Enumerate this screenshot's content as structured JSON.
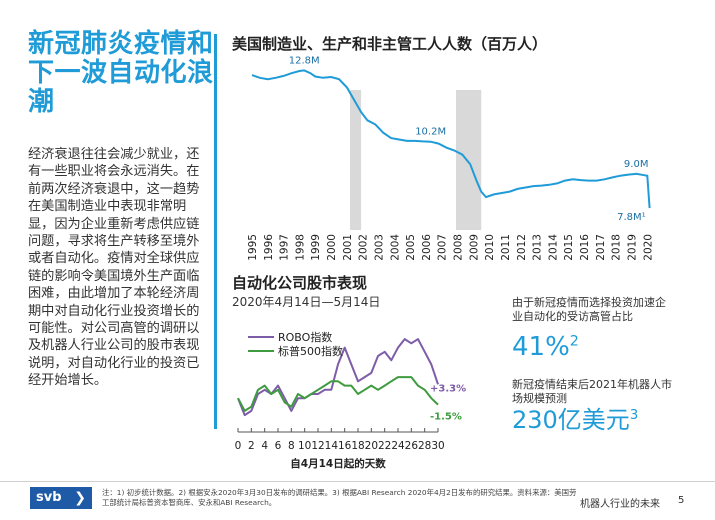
{
  "page": {
    "title": "新冠肺炎疫情和下一波自动化浪潮",
    "body": "经济衰退往往会减少就业，还有一些职业将会永远消失。在前两次经济衰退中，这一趋势在美国制造业中表现非常明显，因为企业重新考虑供应链问题，寻求将生产转移至境外或者自动化。疫情对全球供应链的影响令美国境外生产面临困难，由此增加了本轮经济周期中对自动化行业投资增长的可能性。对公司高管的调研以及机器人行业公司的股市表现说明，对自动化行业的投资已经开始增长。",
    "footnote": "注：1) 初步统计数据。2) 根据安永2020年3月30日发布的调研结果。3) 根据ABI Research 2020年4月2日发布的研究结果。资料来源：美国劳工部统计局标普资本智商库、安永和ABI Research。",
    "footer_right": "机器人行业的未来",
    "page_number": "5",
    "logo_text": "svb",
    "colors": {
      "accent": "#1f9bd7",
      "brand": "#1f5aa6",
      "robo": "#7d5ca8",
      "sp500": "#3f9b3f",
      "recession": "#d9d9d9"
    }
  },
  "stats": [
    {
      "label": "由于新冠疫情而选择投资加速企业自动化的受访高管占比",
      "value": "41%",
      "sup": "2"
    },
    {
      "label": "新冠疫情结束后2021年机器人市场规模预测",
      "value": "230亿美元",
      "sup": "3"
    }
  ],
  "chart_data": [
    {
      "type": "line",
      "title": "美国制造业、生产和非主管工人人数（百万人）",
      "x_ticks": [
        "1995",
        "1996",
        "1997",
        "1998",
        "1999",
        "2000",
        "2001",
        "2002",
        "2003",
        "2004",
        "2005",
        "2006",
        "2007",
        "2008",
        "2009",
        "2010",
        "2011",
        "2012",
        "2013",
        "2014",
        "2015",
        "2016",
        "2017",
        "2018",
        "2019",
        "2020"
      ],
      "recessions": [
        [
          2001.2,
          2001.9
        ],
        [
          2007.9,
          2009.5
        ]
      ],
      "ylim": [
        7.0,
        13.2
      ],
      "series": [
        {
          "values": [
            [
              1995.0,
              12.65
            ],
            [
              1995.5,
              12.55
            ],
            [
              1996.0,
              12.5
            ],
            [
              1996.5,
              12.55
            ],
            [
              1997.0,
              12.62
            ],
            [
              1997.5,
              12.72
            ],
            [
              1998.0,
              12.8
            ],
            [
              1998.3,
              12.82
            ],
            [
              1998.7,
              12.72
            ],
            [
              1999.0,
              12.6
            ],
            [
              1999.5,
              12.55
            ],
            [
              2000.0,
              12.58
            ],
            [
              2000.5,
              12.5
            ],
            [
              2001.0,
              12.2
            ],
            [
              2001.5,
              11.7
            ],
            [
              2001.9,
              11.3
            ],
            [
              2002.3,
              11.0
            ],
            [
              2002.8,
              10.85
            ],
            [
              2003.3,
              10.55
            ],
            [
              2003.8,
              10.35
            ],
            [
              2004.3,
              10.3
            ],
            [
              2004.8,
              10.25
            ],
            [
              2005.3,
              10.25
            ],
            [
              2005.8,
              10.23
            ],
            [
              2006.3,
              10.22
            ],
            [
              2006.8,
              10.15
            ],
            [
              2007.3,
              10.0
            ],
            [
              2007.8,
              9.9
            ],
            [
              2008.3,
              9.75
            ],
            [
              2008.8,
              9.4
            ],
            [
              2009.2,
              8.8
            ],
            [
              2009.5,
              8.4
            ],
            [
              2009.8,
              8.2
            ],
            [
              2010.3,
              8.3
            ],
            [
              2010.8,
              8.35
            ],
            [
              2011.3,
              8.4
            ],
            [
              2011.8,
              8.5
            ],
            [
              2012.3,
              8.55
            ],
            [
              2012.8,
              8.6
            ],
            [
              2013.3,
              8.62
            ],
            [
              2013.8,
              8.65
            ],
            [
              2014.3,
              8.7
            ],
            [
              2014.8,
              8.8
            ],
            [
              2015.3,
              8.85
            ],
            [
              2015.8,
              8.82
            ],
            [
              2016.3,
              8.8
            ],
            [
              2016.8,
              8.8
            ],
            [
              2017.3,
              8.85
            ],
            [
              2017.8,
              8.92
            ],
            [
              2018.3,
              8.98
            ],
            [
              2018.8,
              9.02
            ],
            [
              2019.3,
              9.05
            ],
            [
              2019.8,
              9.0
            ],
            [
              2020.0,
              8.98
            ],
            [
              2020.15,
              7.8
            ]
          ]
        }
      ],
      "annotations": [
        {
          "text": "12.8M",
          "x": 1998.3,
          "y": 12.82
        },
        {
          "text": "10.2M",
          "x": 2006.3,
          "y": 10.22
        },
        {
          "text": "9.0M",
          "x": 2019.3,
          "y": 9.05
        },
        {
          "text": "7.8M¹",
          "x": 2020.15,
          "y": 7.8
        }
      ]
    },
    {
      "type": "line",
      "title": "自动化公司股市表现",
      "subtitle": "2020年4月14日—5月14日",
      "xlabel": "自4月14日起的天数",
      "x_ticks": [
        0,
        2,
        4,
        6,
        8,
        10,
        12,
        14,
        16,
        18,
        20,
        22,
        24,
        26,
        28,
        30
      ],
      "xlim": [
        0,
        30
      ],
      "ylim": [
        -8,
        19
      ],
      "legend": [
        "ROBO指数",
        "标普500指数"
      ],
      "series": [
        {
          "name": "ROBO指数",
          "color": "#7d5ca8",
          "end_label": "+3.3%",
          "x": [
            0,
            1,
            2,
            3,
            4,
            5,
            6,
            7,
            8,
            9,
            10,
            11,
            12,
            13,
            14,
            15,
            16,
            17,
            18,
            19,
            20,
            21,
            22,
            23,
            24,
            25,
            26,
            27,
            28,
            29,
            30
          ],
          "values": [
            0,
            -4,
            -3,
            1,
            2,
            1,
            3,
            0,
            -3,
            0,
            0,
            1,
            1,
            2,
            2,
            8,
            12,
            8,
            4,
            5,
            6,
            10,
            11,
            9,
            12,
            14,
            13,
            14,
            11,
            8,
            3.3
          ]
        },
        {
          "name": "标普500指数",
          "color": "#3f9b3f",
          "end_label": "-1.5%",
          "x": [
            0,
            1,
            2,
            3,
            4,
            5,
            6,
            7,
            8,
            9,
            10,
            11,
            12,
            13,
            14,
            15,
            16,
            17,
            18,
            19,
            20,
            21,
            22,
            23,
            24,
            25,
            26,
            27,
            28,
            29,
            30
          ],
          "values": [
            0,
            -3,
            -2,
            2,
            3,
            1,
            2,
            -1,
            -2,
            1,
            0,
            1,
            2,
            3,
            4,
            4,
            3,
            3,
            1,
            2,
            3,
            2,
            3,
            4,
            5,
            5,
            5,
            3,
            2,
            0,
            -1.5
          ]
        }
      ]
    }
  ]
}
